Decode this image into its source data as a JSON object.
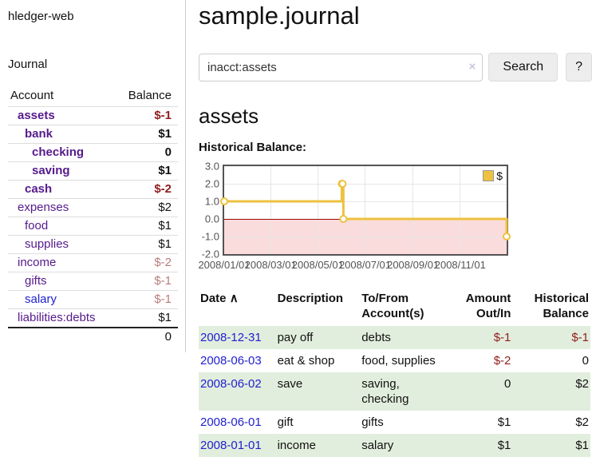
{
  "colors": {
    "purple": "#551a8b",
    "blue": "#1f1fd1",
    "red": "#8f1d1d",
    "faded": "#b97c7c",
    "black": "#111111",
    "row_green": "#e2eedd",
    "line_yellow": "#EDC240",
    "negative_region": "#fbdcdc",
    "zero_line": "#a40000"
  },
  "sidebar": {
    "app_title": "hledger-web",
    "journal_label": "Journal",
    "accounts_table": {
      "col_account": "Account",
      "col_balance": "Balance",
      "rows": [
        {
          "name": "assets",
          "depth": 0,
          "bold": true,
          "color": "purple",
          "balance": "$-1",
          "bal_color": "red",
          "bal_bold": true
        },
        {
          "name": "bank",
          "depth": 1,
          "bold": true,
          "color": "purple",
          "balance": "$1",
          "bal_color": "black",
          "bal_bold": true
        },
        {
          "name": "checking",
          "depth": 2,
          "bold": true,
          "color": "purple",
          "balance": "0",
          "bal_color": "black",
          "bal_bold": true
        },
        {
          "name": "saving",
          "depth": 2,
          "bold": true,
          "color": "purple",
          "balance": "$1",
          "bal_color": "black",
          "bal_bold": true
        },
        {
          "name": "cash",
          "depth": 1,
          "bold": true,
          "color": "purple",
          "balance": "$-2",
          "bal_color": "red",
          "bal_bold": true
        },
        {
          "name": "expenses",
          "depth": 0,
          "bold": false,
          "color": "purple",
          "balance": "$2",
          "bal_color": "black",
          "bal_bold": false
        },
        {
          "name": "food",
          "depth": 1,
          "bold": false,
          "color": "purple",
          "balance": "$1",
          "bal_color": "black",
          "bal_bold": false
        },
        {
          "name": "supplies",
          "depth": 1,
          "bold": false,
          "color": "purple",
          "balance": "$1",
          "bal_color": "black",
          "bal_bold": false
        },
        {
          "name": "income",
          "depth": 0,
          "bold": false,
          "color": "purple",
          "balance": "$-2",
          "bal_color": "faded",
          "bal_bold": false
        },
        {
          "name": "gifts",
          "depth": 1,
          "bold": false,
          "color": "purple",
          "balance": "$-1",
          "bal_color": "faded",
          "bal_bold": false
        },
        {
          "name": "salary",
          "depth": 1,
          "bold": false,
          "color": "blue",
          "balance": "$-1",
          "bal_color": "faded",
          "bal_bold": false
        },
        {
          "name": "liabilities:debts",
          "depth": 0,
          "bold": false,
          "color": "purple",
          "balance": "$1",
          "bal_color": "black",
          "bal_bold": false
        }
      ],
      "total": "0"
    }
  },
  "main": {
    "title": "sample.journal",
    "search": {
      "value": "inacct:assets",
      "clear_icon": "×",
      "button_label": "Search",
      "help_label": "?"
    },
    "account_heading": "assets",
    "chart_label": "Historical Balance:",
    "register": {
      "headers": {
        "date": "Date",
        "sort_icon": "∧",
        "description": "Description",
        "accounts": "To/From\nAccount(s)",
        "amount": "Amount\nOut/In",
        "balance": "Historical\nBalance"
      },
      "rows": [
        {
          "date": "2008-12-31",
          "desc": "pay off",
          "accounts": "debts",
          "amount": "$-1",
          "amount_neg": true,
          "balance": "$-1",
          "balance_neg": true,
          "shaded": true
        },
        {
          "date": "2008-06-03",
          "desc": "eat & shop",
          "accounts": "food, supplies",
          "amount": "$-2",
          "amount_neg": true,
          "balance": "0",
          "balance_neg": false,
          "shaded": false
        },
        {
          "date": "2008-06-02",
          "desc": "save",
          "accounts": "saving,\nchecking",
          "amount": "0",
          "amount_neg": false,
          "balance": "$2",
          "balance_neg": false,
          "shaded": true
        },
        {
          "date": "2008-06-01",
          "desc": "gift",
          "accounts": "gifts",
          "amount": "$1",
          "amount_neg": false,
          "balance": "$2",
          "balance_neg": false,
          "shaded": false
        },
        {
          "date": "2008-01-01",
          "desc": "income",
          "accounts": "salary",
          "amount": "$1",
          "amount_neg": false,
          "balance": "$1",
          "balance_neg": false,
          "shaded": true
        }
      ]
    }
  },
  "chart_data": {
    "type": "line",
    "title": "Historical Balance",
    "step": true,
    "x_domain": [
      "2008-01-01",
      "2008-12-31"
    ],
    "ylim": [
      -2,
      3
    ],
    "y_ticks": [
      "3.0",
      "2.0",
      "1.0",
      "0.0",
      "-1.0",
      "-2.0"
    ],
    "x_ticks": [
      "2008/01/01",
      "2008/03/01",
      "2008/05/01",
      "2008/07/01",
      "2008/09/01",
      "2008/11/01"
    ],
    "series": [
      {
        "name": "$",
        "color": "#EDC240",
        "points": [
          [
            "2008-01-01",
            1
          ],
          [
            "2008-06-01",
            2
          ],
          [
            "2008-06-02",
            2
          ],
          [
            "2008-06-03",
            0
          ],
          [
            "2008-12-31",
            -1
          ]
        ]
      }
    ],
    "legend": {
      "label": "$",
      "position": "top-right"
    },
    "grid": true,
    "negative_region_color": "#fbdcdc",
    "zero_line_color": "#a40000"
  }
}
